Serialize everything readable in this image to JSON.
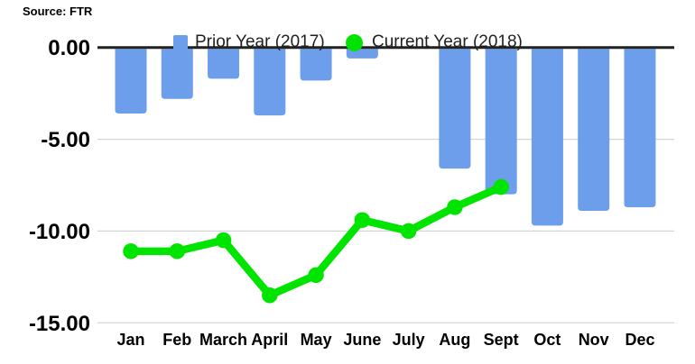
{
  "source_label": "Source: FTR",
  "chart_data": {
    "type": "combo (bar + line)",
    "title": "",
    "xlabel": "",
    "ylabel": "",
    "categories": [
      "Jan",
      "Feb",
      "March",
      "April",
      "May",
      "June",
      "July",
      "Aug",
      "Sept",
      "Oct",
      "Nov",
      "Dec"
    ],
    "series": [
      {
        "name": "Prior Year (2017)",
        "type": "bar",
        "color": "#6d9eeb",
        "values": [
          -3.6,
          -2.8,
          -1.7,
          -3.7,
          -1.8,
          -0.6,
          0.0,
          -6.6,
          -8.0,
          -9.7,
          -8.9,
          -8.7
        ]
      },
      {
        "name": "Current Year (2018)",
        "type": "line",
        "color": "#00e400",
        "values": [
          -11.1,
          -11.1,
          -10.5,
          -13.5,
          -12.4,
          -9.4,
          -10.0,
          -8.7,
          -7.6,
          null,
          null,
          null
        ]
      }
    ],
    "ylim": [
      -15,
      0
    ],
    "yticks": [
      0,
      -5,
      -10,
      -15
    ],
    "ytick_labels": [
      "0.00",
      "-5.00",
      "-10.00",
      "-15.00"
    ],
    "grid": true,
    "gridline_color": "#cccccc",
    "baseline_color": "#212121",
    "axis_text_color": "#000000",
    "legend_position": "top-inside"
  }
}
